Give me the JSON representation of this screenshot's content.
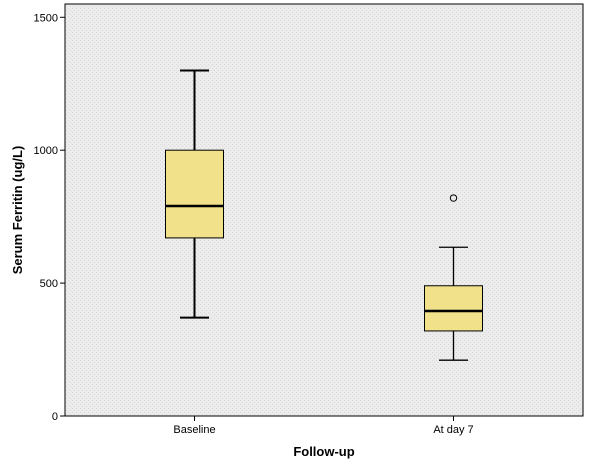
{
  "chart_data": {
    "type": "box",
    "xlabel": "Follow-up",
    "ylabel": "Serum Ferritin (ug/L)",
    "ylim": [
      0,
      1550
    ],
    "yticks": [
      0,
      500,
      1000,
      1500
    ],
    "grid": false,
    "plot_background": "#ebebeb",
    "box_color": "#f0e18a",
    "categories": [
      "Baseline",
      "At day 7"
    ],
    "boxes": [
      {
        "category": "Baseline",
        "whisker_low": 370,
        "q1": 670,
        "median": 790,
        "q3": 1000,
        "whisker_high": 1300,
        "outliers": []
      },
      {
        "category": "At day 7",
        "whisker_low": 210,
        "q1": 320,
        "median": 395,
        "q3": 490,
        "whisker_high": 635,
        "outliers": [
          820
        ]
      }
    ]
  }
}
